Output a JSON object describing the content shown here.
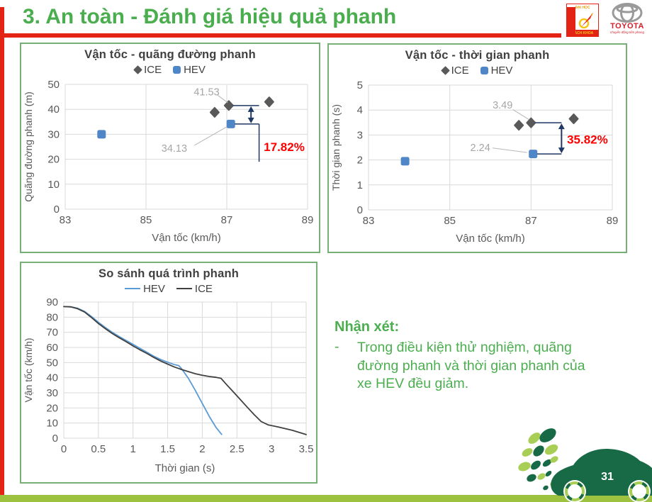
{
  "slide": {
    "title": "3. An toàn - Đánh giá hiệu quả phanh",
    "page_number": "31"
  },
  "logos": {
    "bachkhoa": {
      "line1": "ĐẠI HỌC",
      "line2": "BÁCH KHOA"
    },
    "toyota": {
      "name": "TOYOTA",
      "tagline": "chuyển động tiên phong"
    }
  },
  "comment": {
    "heading": "Nhận xét:",
    "bullet_dash": "-",
    "text": "Trong điều kiện thử nghiệm, quãng đường phanh và thời gian phanh của xe HEV đều giảm."
  },
  "chart_data": [
    {
      "id": "speed-distance",
      "type": "scatter",
      "title": "Vận tốc - quãng đường phanh",
      "xlabel": "Vận tốc (km/h)",
      "ylabel": "Quãng đường phanh (m)",
      "xlim": [
        83,
        89
      ],
      "ylim": [
        0,
        50
      ],
      "xticks": [
        83,
        85,
        87,
        89
      ],
      "yticks": [
        0,
        10,
        20,
        30,
        40,
        50
      ],
      "grid": true,
      "legend_position": "top",
      "series": [
        {
          "name": "ICE",
          "marker": "diamond",
          "color": "#595959",
          "points": [
            [
              86.7,
              38.8
            ],
            [
              87.05,
              41.53
            ],
            [
              88.05,
              43.0
            ]
          ]
        },
        {
          "name": "HEV",
          "marker": "square",
          "color": "#4e86c8",
          "points": [
            [
              83.9,
              30.0
            ],
            [
              87.1,
              34.13
            ]
          ]
        }
      ],
      "point_labels": [
        {
          "text": "41.53",
          "tx": 86.5,
          "ty": 47.0,
          "leader": [
            86.78,
            45.6,
            87.02,
            42.7
          ]
        },
        {
          "text": "34.13",
          "tx": 85.7,
          "ty": 24.5,
          "leader": [
            86.2,
            25.6,
            87.0,
            33.0
          ]
        }
      ],
      "annotation": {
        "label": "17.82%",
        "label_color": "#ff0000",
        "y_top": 41.53,
        "y_bot": 34.13,
        "x_start_top": 87.15,
        "x_start_bot": 87.2,
        "x_ext": 87.8,
        "x_arrow": 87.6,
        "drop_to": 19,
        "label_x": 87.88,
        "label_y": 25
      }
    },
    {
      "id": "speed-time",
      "type": "scatter",
      "title": "Vận tốc - thời gian phanh",
      "xlabel": "Vận tốc (km/h)",
      "ylabel": "Thời gian phanh (s)",
      "xlim": [
        83,
        89
      ],
      "ylim": [
        0,
        5
      ],
      "xticks": [
        83,
        85,
        87,
        89
      ],
      "yticks": [
        0,
        1,
        2,
        3,
        4,
        5
      ],
      "grid": true,
      "legend_position": "top",
      "series": [
        {
          "name": "ICE",
          "marker": "diamond",
          "color": "#595959",
          "points": [
            [
              86.7,
              3.39
            ],
            [
              87.0,
              3.49
            ],
            [
              88.05,
              3.65
            ]
          ]
        },
        {
          "name": "HEV",
          "marker": "square",
          "color": "#4e86c8",
          "points": [
            [
              83.9,
              1.95
            ],
            [
              87.05,
              2.24
            ]
          ]
        }
      ],
      "point_labels": [
        {
          "text": "3.49",
          "tx": 86.3,
          "ty": 4.2,
          "leader": [
            86.55,
            4.02,
            86.95,
            3.62
          ]
        },
        {
          "text": "2.24",
          "tx": 85.75,
          "ty": 2.5,
          "leader": [
            86.05,
            2.48,
            86.9,
            2.3
          ]
        }
      ],
      "annotation": {
        "label": "35.82%",
        "label_color": "#ff0000",
        "y_top": 3.49,
        "y_bot": 2.24,
        "x_start_top": 87.1,
        "x_start_bot": 87.15,
        "x_ext": 87.75,
        "x_arrow": 87.75,
        "drop_to": null,
        "label_x": 87.85,
        "label_y": 2.82
      }
    },
    {
      "id": "braking-comparison",
      "type": "line",
      "title": "So sánh quá trình phanh",
      "xlabel": "Thời gian (s)",
      "ylabel": "Vận tốc (km/h)",
      "xlim": [
        0,
        3.5
      ],
      "ylim": [
        0,
        90
      ],
      "xticks": [
        0,
        0.5,
        1,
        1.5,
        2,
        2.5,
        3,
        3.5
      ],
      "yticks": [
        0,
        10,
        20,
        30,
        40,
        50,
        60,
        70,
        80,
        90
      ],
      "grid": true,
      "legend_position": "top",
      "series": [
        {
          "name": "HEV",
          "color": "#5b9bd5",
          "points": [
            [
              0,
              87
            ],
            [
              0.1,
              86.9
            ],
            [
              0.2,
              85.9
            ],
            [
              0.3,
              83.8
            ],
            [
              0.4,
              80.4
            ],
            [
              0.5,
              76.6
            ],
            [
              0.6,
              73.2
            ],
            [
              0.7,
              70.0
            ],
            [
              0.8,
              67.2
            ],
            [
              0.9,
              64.6
            ],
            [
              1.0,
              62.0
            ],
            [
              1.1,
              59.4
            ],
            [
              1.2,
              56.8
            ],
            [
              1.3,
              54.2
            ],
            [
              1.4,
              52.0
            ],
            [
              1.5,
              50.2
            ],
            [
              1.6,
              48.6
            ],
            [
              1.66,
              48.0
            ],
            [
              1.7,
              46.0
            ],
            [
              1.8,
              39.5
            ],
            [
              1.9,
              31.5
            ],
            [
              2.0,
              23.0
            ],
            [
              2.1,
              14.5
            ],
            [
              2.2,
              7.0
            ],
            [
              2.28,
              2.5
            ]
          ]
        },
        {
          "name": "ICE",
          "color": "#404040",
          "points": [
            [
              0,
              87
            ],
            [
              0.1,
              86.8
            ],
            [
              0.2,
              85.6
            ],
            [
              0.3,
              83.4
            ],
            [
              0.4,
              79.8
            ],
            [
              0.5,
              75.8
            ],
            [
              0.6,
              72.4
            ],
            [
              0.7,
              69.2
            ],
            [
              0.8,
              66.4
            ],
            [
              0.9,
              63.8
            ],
            [
              1.0,
              61.0
            ],
            [
              1.1,
              58.4
            ],
            [
              1.2,
              56.0
            ],
            [
              1.3,
              53.4
            ],
            [
              1.4,
              51.0
            ],
            [
              1.5,
              49.0
            ],
            [
              1.6,
              47.0
            ],
            [
              1.7,
              45.4
            ],
            [
              1.8,
              44.0
            ],
            [
              1.9,
              42.6
            ],
            [
              2.0,
              41.6
            ],
            [
              2.1,
              40.8
            ],
            [
              2.2,
              40.2
            ],
            [
              2.27,
              39.6
            ],
            [
              2.35,
              35.5
            ],
            [
              2.45,
              30.5
            ],
            [
              2.55,
              25.5
            ],
            [
              2.65,
              20.5
            ],
            [
              2.75,
              15.5
            ],
            [
              2.85,
              11.0
            ],
            [
              2.95,
              8.8
            ],
            [
              3.1,
              7.4
            ],
            [
              3.3,
              5.2
            ],
            [
              3.5,
              2.4
            ]
          ]
        }
      ]
    }
  ]
}
